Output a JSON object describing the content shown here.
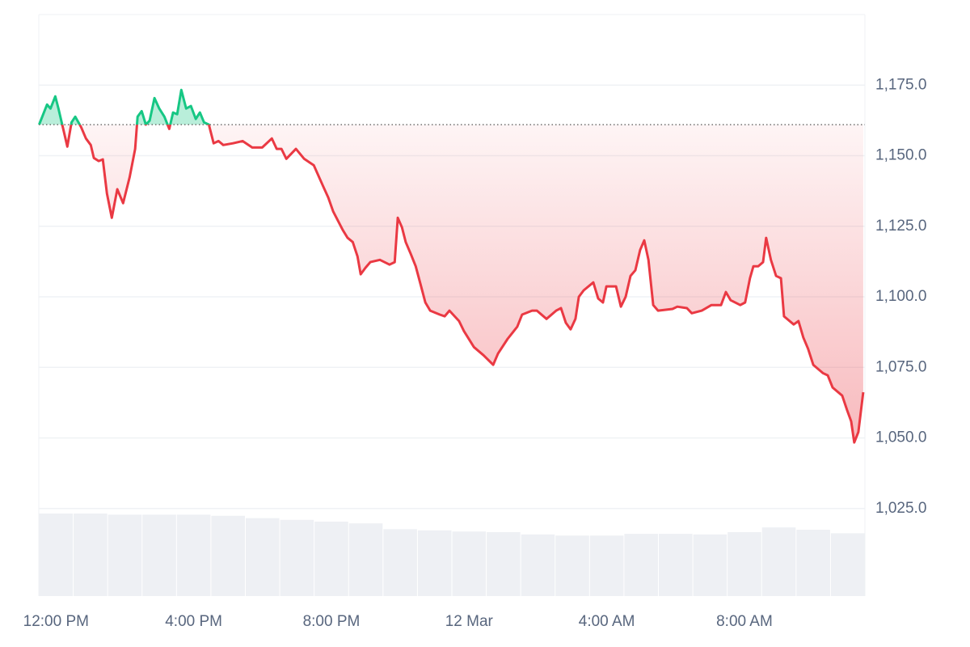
{
  "chart_data": {
    "type": "line",
    "x": [
      -0.49,
      -0.26,
      -0.16,
      -0.02,
      0.07,
      0.21,
      0.33,
      0.45,
      0.56,
      0.73,
      0.87,
      1.01,
      1.1,
      1.24,
      1.36,
      1.48,
      1.62,
      1.78,
      1.95,
      2.14,
      2.3,
      2.37,
      2.49,
      2.61,
      2.72,
      2.86,
      3.0,
      3.15,
      3.29,
      3.4,
      3.52,
      3.64,
      3.78,
      3.92,
      4.06,
      4.18,
      4.3,
      4.44,
      4.58,
      4.72,
      4.86,
      5.14,
      5.42,
      5.7,
      5.99,
      6.27,
      6.41,
      6.55,
      6.69,
      6.97,
      7.21,
      7.49,
      7.77,
      7.91,
      8.05,
      8.33,
      8.47,
      8.62,
      8.76,
      8.85,
      8.99,
      9.13,
      9.41,
      9.69,
      9.84,
      9.93,
      10.05,
      10.16,
      10.31,
      10.45,
      10.59,
      10.73,
      10.87,
      11.15,
      11.29,
      11.43,
      11.71,
      11.85,
      12.14,
      12.42,
      12.7,
      12.84,
      13.12,
      13.4,
      13.54,
      13.83,
      13.97,
      14.25,
      14.53,
      14.67,
      14.81,
      14.95,
      15.09,
      15.19,
      15.33,
      15.61,
      15.75,
      15.89,
      15.99,
      16.27,
      16.41,
      16.55,
      16.69,
      16.83,
      16.97,
      17.09,
      17.21,
      17.35,
      17.49,
      17.91,
      18.05,
      18.33,
      18.47,
      18.76,
      19.04,
      19.32,
      19.46,
      19.6,
      19.88,
      20.02,
      20.16,
      20.26,
      20.4,
      20.54,
      20.63,
      20.77,
      20.92,
      21.06,
      21.15,
      21.43,
      21.57,
      21.71,
      21.85,
      22.0,
      22.28,
      22.42,
      22.56,
      22.84,
      22.98,
      23.1,
      23.19,
      23.31,
      23.45
    ],
    "series": [
      {
        "color": "#ea3943",
        "up_color": "#16c784",
        "values": [
          1161.0,
          1168.1,
          1166.7,
          1171.0,
          1166.7,
          1159.5,
          1153.2,
          1161.8,
          1163.8,
          1160.1,
          1156.1,
          1153.8,
          1149.2,
          1148.1,
          1148.7,
          1136.6,
          1128.0,
          1138.1,
          1133.2,
          1142.4,
          1152.4,
          1163.8,
          1165.8,
          1161.0,
          1162.4,
          1170.4,
          1166.7,
          1163.8,
          1159.5,
          1165.3,
          1164.7,
          1173.3,
          1166.7,
          1167.6,
          1163.0,
          1165.3,
          1161.8,
          1161.0,
          1154.4,
          1155.2,
          1153.8,
          1154.4,
          1155.2,
          1152.9,
          1152.9,
          1156.1,
          1152.4,
          1152.4,
          1148.9,
          1152.4,
          1148.9,
          1146.6,
          1138.9,
          1135.2,
          1130.3,
          1123.7,
          1120.9,
          1119.4,
          1114.3,
          1108.0,
          1110.3,
          1112.3,
          1113.1,
          1111.4,
          1112.3,
          1128.0,
          1124.6,
          1119.4,
          1115.1,
          1110.8,
          1104.5,
          1098.0,
          1095.1,
          1093.7,
          1093.1,
          1095.1,
          1091.4,
          1087.9,
          1082.2,
          1079.3,
          1075.9,
          1079.9,
          1085.1,
          1089.4,
          1093.7,
          1095.1,
          1095.1,
          1092.2,
          1095.1,
          1096.0,
          1090.8,
          1088.5,
          1092.2,
          1100.0,
          1102.3,
          1105.1,
          1099.4,
          1098.0,
          1103.7,
          1103.7,
          1096.5,
          1100.0,
          1107.4,
          1109.4,
          1116.6,
          1120.0,
          1113.1,
          1097.1,
          1095.1,
          1095.7,
          1096.5,
          1096.0,
          1094.2,
          1095.1,
          1097.1,
          1097.1,
          1101.7,
          1098.8,
          1097.1,
          1098.0,
          1106.6,
          1110.8,
          1110.8,
          1112.3,
          1120.9,
          1113.1,
          1107.4,
          1106.6,
          1093.1,
          1090.2,
          1091.4,
          1085.6,
          1081.6,
          1075.9,
          1073.0,
          1072.2,
          1067.9,
          1065.0,
          1059.9,
          1055.9,
          1048.4,
          1052.1,
          1066.2
        ]
      },
      {
        "axis": "y2",
        "color": "#eef0f4",
        "x": [
          0,
          1,
          2,
          3,
          4,
          5,
          6,
          7,
          8,
          9,
          10,
          11,
          12,
          13,
          14,
          15,
          16,
          17,
          18,
          19,
          20,
          21,
          22,
          23
        ],
        "values": [
          14.2,
          14.2,
          14.0,
          14.0,
          14.0,
          13.8,
          13.4,
          13.1,
          12.8,
          12.5,
          11.5,
          11.3,
          11.1,
          11.0,
          10.6,
          10.4,
          10.4,
          10.7,
          10.7,
          10.6,
          11.0,
          11.8,
          11.4,
          10.8
        ]
      }
    ],
    "baseline": 1161.0,
    "xlim": [
      -0.5,
      23.5
    ],
    "xticks": [
      {
        "value": 0,
        "label": "12:00 PM"
      },
      {
        "value": 4,
        "label": "4:00 PM"
      },
      {
        "value": 8,
        "label": "8:00 PM"
      },
      {
        "value": 12,
        "label": "12 Mar"
      },
      {
        "value": 16,
        "label": "4:00 AM"
      },
      {
        "value": 20,
        "label": "8:00 AM"
      }
    ],
    "ylim": [
      994,
      1200
    ],
    "yticks": [
      {
        "value": 1025,
        "label": "1,025.0"
      },
      {
        "value": 1050,
        "label": "1,050.0"
      },
      {
        "value": 1075,
        "label": "1,075.0"
      },
      {
        "value": 1100,
        "label": "1,100.0"
      },
      {
        "value": 1125,
        "label": "1,125.0"
      },
      {
        "value": 1150,
        "label": "1,150.0"
      },
      {
        "value": 1175,
        "label": "1,175.0"
      }
    ],
    "y2lim": [
      0,
      100
    ],
    "grid": true
  }
}
